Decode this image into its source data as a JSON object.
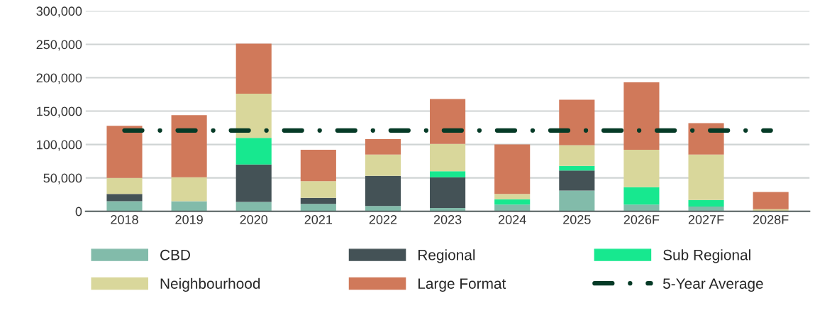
{
  "chart_data": {
    "type": "bar",
    "stacked": true,
    "categories": [
      "2018",
      "2019",
      "2020",
      "2021",
      "2022",
      "2023",
      "2024",
      "2025",
      "2026F",
      "2027F",
      "2028F"
    ],
    "series": [
      {
        "name": "CBD",
        "color": "#82bbaa",
        "values": [
          15000,
          15000,
          14000,
          11000,
          8000,
          5000,
          10000,
          31000,
          10000,
          7000,
          null
        ]
      },
      {
        "name": "Regional",
        "color": "#445256",
        "values": [
          11000,
          0,
          56000,
          9000,
          45000,
          46000,
          0,
          30000,
          0,
          0,
          0
        ]
      },
      {
        "name": "Sub Regional",
        "color": "#17e88f",
        "values": [
          0,
          0,
          40000,
          0,
          0,
          9000,
          8000,
          7000,
          26000,
          10000,
          0
        ]
      },
      {
        "name": "Neighbourhood",
        "color": "#d9d79b",
        "values": [
          24000,
          36000,
          66000,
          25000,
          32000,
          41000,
          8000,
          31000,
          56000,
          68000,
          3000
        ]
      },
      {
        "name": "Large Format",
        "color": "#d0795a",
        "values": [
          78000,
          93000,
          75000,
          47000,
          23000,
          67000,
          74000,
          68000,
          101000,
          47000,
          26000
        ]
      },
      {
        "name": "5-Year Average",
        "type": "line",
        "line_style": "dashdot",
        "color": "#053a26",
        "values": [
          121000,
          121000,
          121000,
          121000,
          121000,
          121000,
          121000,
          121000,
          121000,
          121000,
          121000
        ]
      }
    ],
    "ylim": [
      0,
      300000
    ],
    "yticks": [
      {
        "value": 0,
        "label": "0"
      },
      {
        "value": 50000,
        "label": "50,000"
      },
      {
        "value": 100000,
        "label": "100,000"
      },
      {
        "value": 150000,
        "label": "150,000"
      },
      {
        "value": 200000,
        "label": "200,000"
      },
      {
        "value": 250000,
        "label": "250,000"
      },
      {
        "value": 300000,
        "label": "300,000"
      }
    ],
    "grid": "y",
    "legend": "bottom"
  }
}
